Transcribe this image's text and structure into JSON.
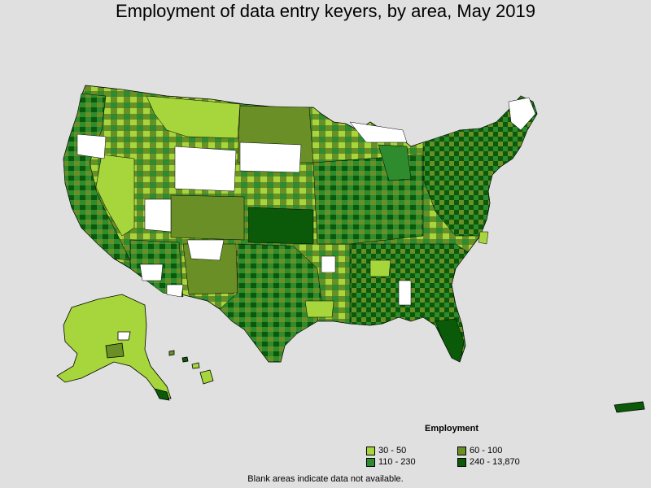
{
  "title": "Employment of data entry keyers, by area, May 2019",
  "legend": {
    "title": "Employment",
    "items": [
      {
        "label": "30 - 50",
        "color": "#a6d63c"
      },
      {
        "label": "60 - 100",
        "color": "#6a8f26"
      },
      {
        "label": "110 - 230",
        "color": "#2e8b2e"
      },
      {
        "label": "240 - 13,870",
        "color": "#0a5a0a"
      }
    ]
  },
  "footnote": "Blank areas indicate data not available.",
  "colors": {
    "background": "#e0e0e0",
    "blank": "#ffffff",
    "border": "#000000"
  }
}
